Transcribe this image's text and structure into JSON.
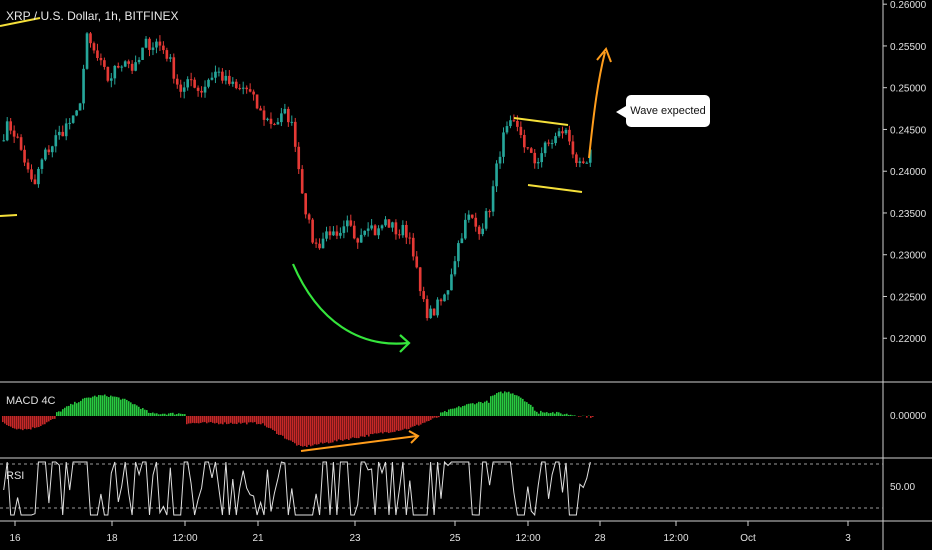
{
  "header": {
    "title": "XRP / U.S. Dollar, 1h, BITFINEX"
  },
  "annotation": {
    "text": "Wave expected"
  },
  "panes": {
    "macd_label": "MACD 4C",
    "rsi_label": "RSI"
  },
  "colors": {
    "up": "#26a69a",
    "down": "#e53935",
    "macd_pos": "#28c940",
    "macd_neg": "#c62828",
    "trendline": "#f5e03a",
    "arrow": "#ff9d1c",
    "curve": "#35e53c",
    "rsi": "#e0e0e0"
  },
  "chart_data": [
    {
      "type": "candlestick",
      "title": "XRP / U.S. Dollar, 1h, BITFINEX",
      "ylim": [
        0.215,
        0.2605
      ],
      "y_ticks": [
        "0.26000",
        "0.25500",
        "0.25000",
        "0.24500",
        "0.24000",
        "0.23500",
        "0.23000",
        "0.22500",
        "0.22000"
      ],
      "x_ticks": [
        "16",
        "18",
        "12:00",
        "21",
        "23",
        "25",
        "12:00",
        "28",
        "12:00",
        "Oct",
        "3"
      ],
      "close_path": [
        [
          0.2445,
          0.2455,
          0.245,
          0.244,
          0.2425,
          0.241,
          0.239,
          0.238,
          0.24,
          0.2415,
          0.2425,
          0.243,
          0.244,
          0.2445,
          0.2452,
          0.2458,
          0.246
        ],
        [
          0.247,
          0.25,
          0.256,
          0.255,
          0.254,
          0.253,
          0.252,
          0.251,
          0.2515,
          0.2525,
          0.253,
          0.2535,
          0.2528,
          0.252,
          0.253,
          0.2545,
          0.2555
        ],
        [
          0.255,
          0.2555,
          0.255,
          0.2545,
          0.2535,
          0.252,
          0.2505,
          0.2495,
          0.25,
          0.251,
          0.2505,
          0.2495,
          0.25,
          0.251,
          0.2515,
          0.252,
          0.2515
        ],
        [
          0.2508,
          0.2505,
          0.25,
          0.2495,
          0.25,
          0.2498,
          0.249,
          0.248,
          0.247,
          0.2465,
          0.246,
          0.2458,
          0.246,
          0.2465,
          0.247,
          0.246,
          0.244
        ],
        [
          0.24,
          0.237,
          0.234,
          0.232,
          0.231,
          0.2315,
          0.2325,
          0.233,
          0.232,
          0.2315,
          0.2325,
          0.2335,
          0.233,
          0.232,
          0.2325,
          0.2335,
          0.234
        ],
        [
          0.233,
          0.2325,
          0.2335,
          0.234,
          0.2335,
          0.233,
          0.2325,
          0.233,
          0.2325,
          0.2315,
          0.228,
          0.225,
          0.2235,
          0.2228,
          0.2232,
          0.224,
          0.2245
        ],
        [
          0.2255,
          0.228,
          0.23,
          0.232,
          0.2335,
          0.2345,
          0.234,
          0.233,
          0.2335,
          0.2345,
          0.236,
          0.239,
          0.242,
          0.244,
          0.245,
          0.2455,
          0.245
        ],
        [
          0.2445,
          0.243,
          0.242,
          0.241,
          0.2415,
          0.2425,
          0.243,
          0.2435,
          0.244,
          0.2445,
          0.245,
          0.244,
          0.2425,
          0.241,
          0.24,
          0.2405,
          0.242
        ]
      ],
      "annotations": [
        "Wave expected"
      ]
    },
    {
      "type": "bar",
      "title": "MACD 4C",
      "y_ticks": [
        "0.00000"
      ]
    },
    {
      "type": "line",
      "title": "RSI",
      "y_ticks": [
        "50.00"
      ]
    }
  ]
}
